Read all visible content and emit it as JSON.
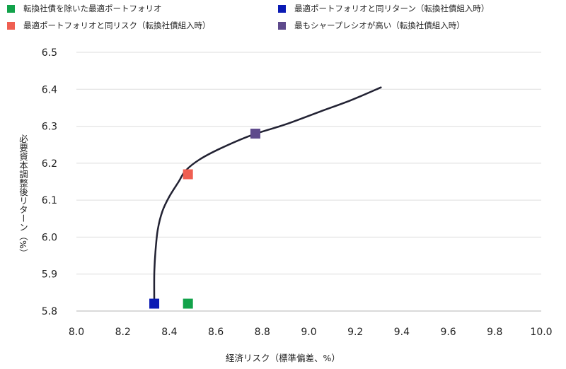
{
  "chart_data": {
    "type": "scatter",
    "title": "",
    "xlabel": "経済リスク（標準偏差、%）",
    "ylabel": "必要資本調整後リターン（%）",
    "xlim": [
      8.0,
      10.0
    ],
    "ylim": [
      5.8,
      6.5
    ],
    "x_ticks": [
      "8.0",
      "8.2",
      "8.4",
      "8.6",
      "8.8",
      "9.0",
      "9.2",
      "9.4",
      "9.6",
      "9.8",
      "10.0"
    ],
    "y_ticks": [
      "5.8",
      "5.9",
      "6.0",
      "6.1",
      "6.2",
      "6.3",
      "6.4",
      "6.5"
    ],
    "grid": "horizontal",
    "legend_position": "top",
    "frontier": {
      "color": "#222233",
      "points": [
        [
          8.335,
          5.82
        ],
        [
          8.335,
          5.9
        ],
        [
          8.34,
          5.96
        ],
        [
          8.35,
          6.02
        ],
        [
          8.37,
          6.07
        ],
        [
          8.4,
          6.11
        ],
        [
          8.44,
          6.15
        ],
        [
          8.47,
          6.18
        ],
        [
          8.53,
          6.21
        ],
        [
          8.62,
          6.24
        ],
        [
          8.75,
          6.275
        ],
        [
          8.9,
          6.305
        ],
        [
          9.05,
          6.34
        ],
        [
          9.18,
          6.37
        ],
        [
          9.31,
          6.405
        ]
      ]
    },
    "series": [
      {
        "name": "転換社債を除いた最適ポートフォリオ",
        "color": "#12a24a",
        "x": 8.48,
        "y": 5.82
      },
      {
        "name": "最適ポートフォリオと同リスク（転換社債組入時）",
        "color": "#ef5f52",
        "x": 8.48,
        "y": 6.17
      },
      {
        "name": "最適ポートフォリオと同リターン（転換社債組入時）",
        "color": "#0a1ab4",
        "x": 8.335,
        "y": 5.82
      },
      {
        "name": "最もシャープレシオが高い（転換社債組入時）",
        "color": "#5e4a8c",
        "x": 8.77,
        "y": 6.28
      }
    ]
  }
}
